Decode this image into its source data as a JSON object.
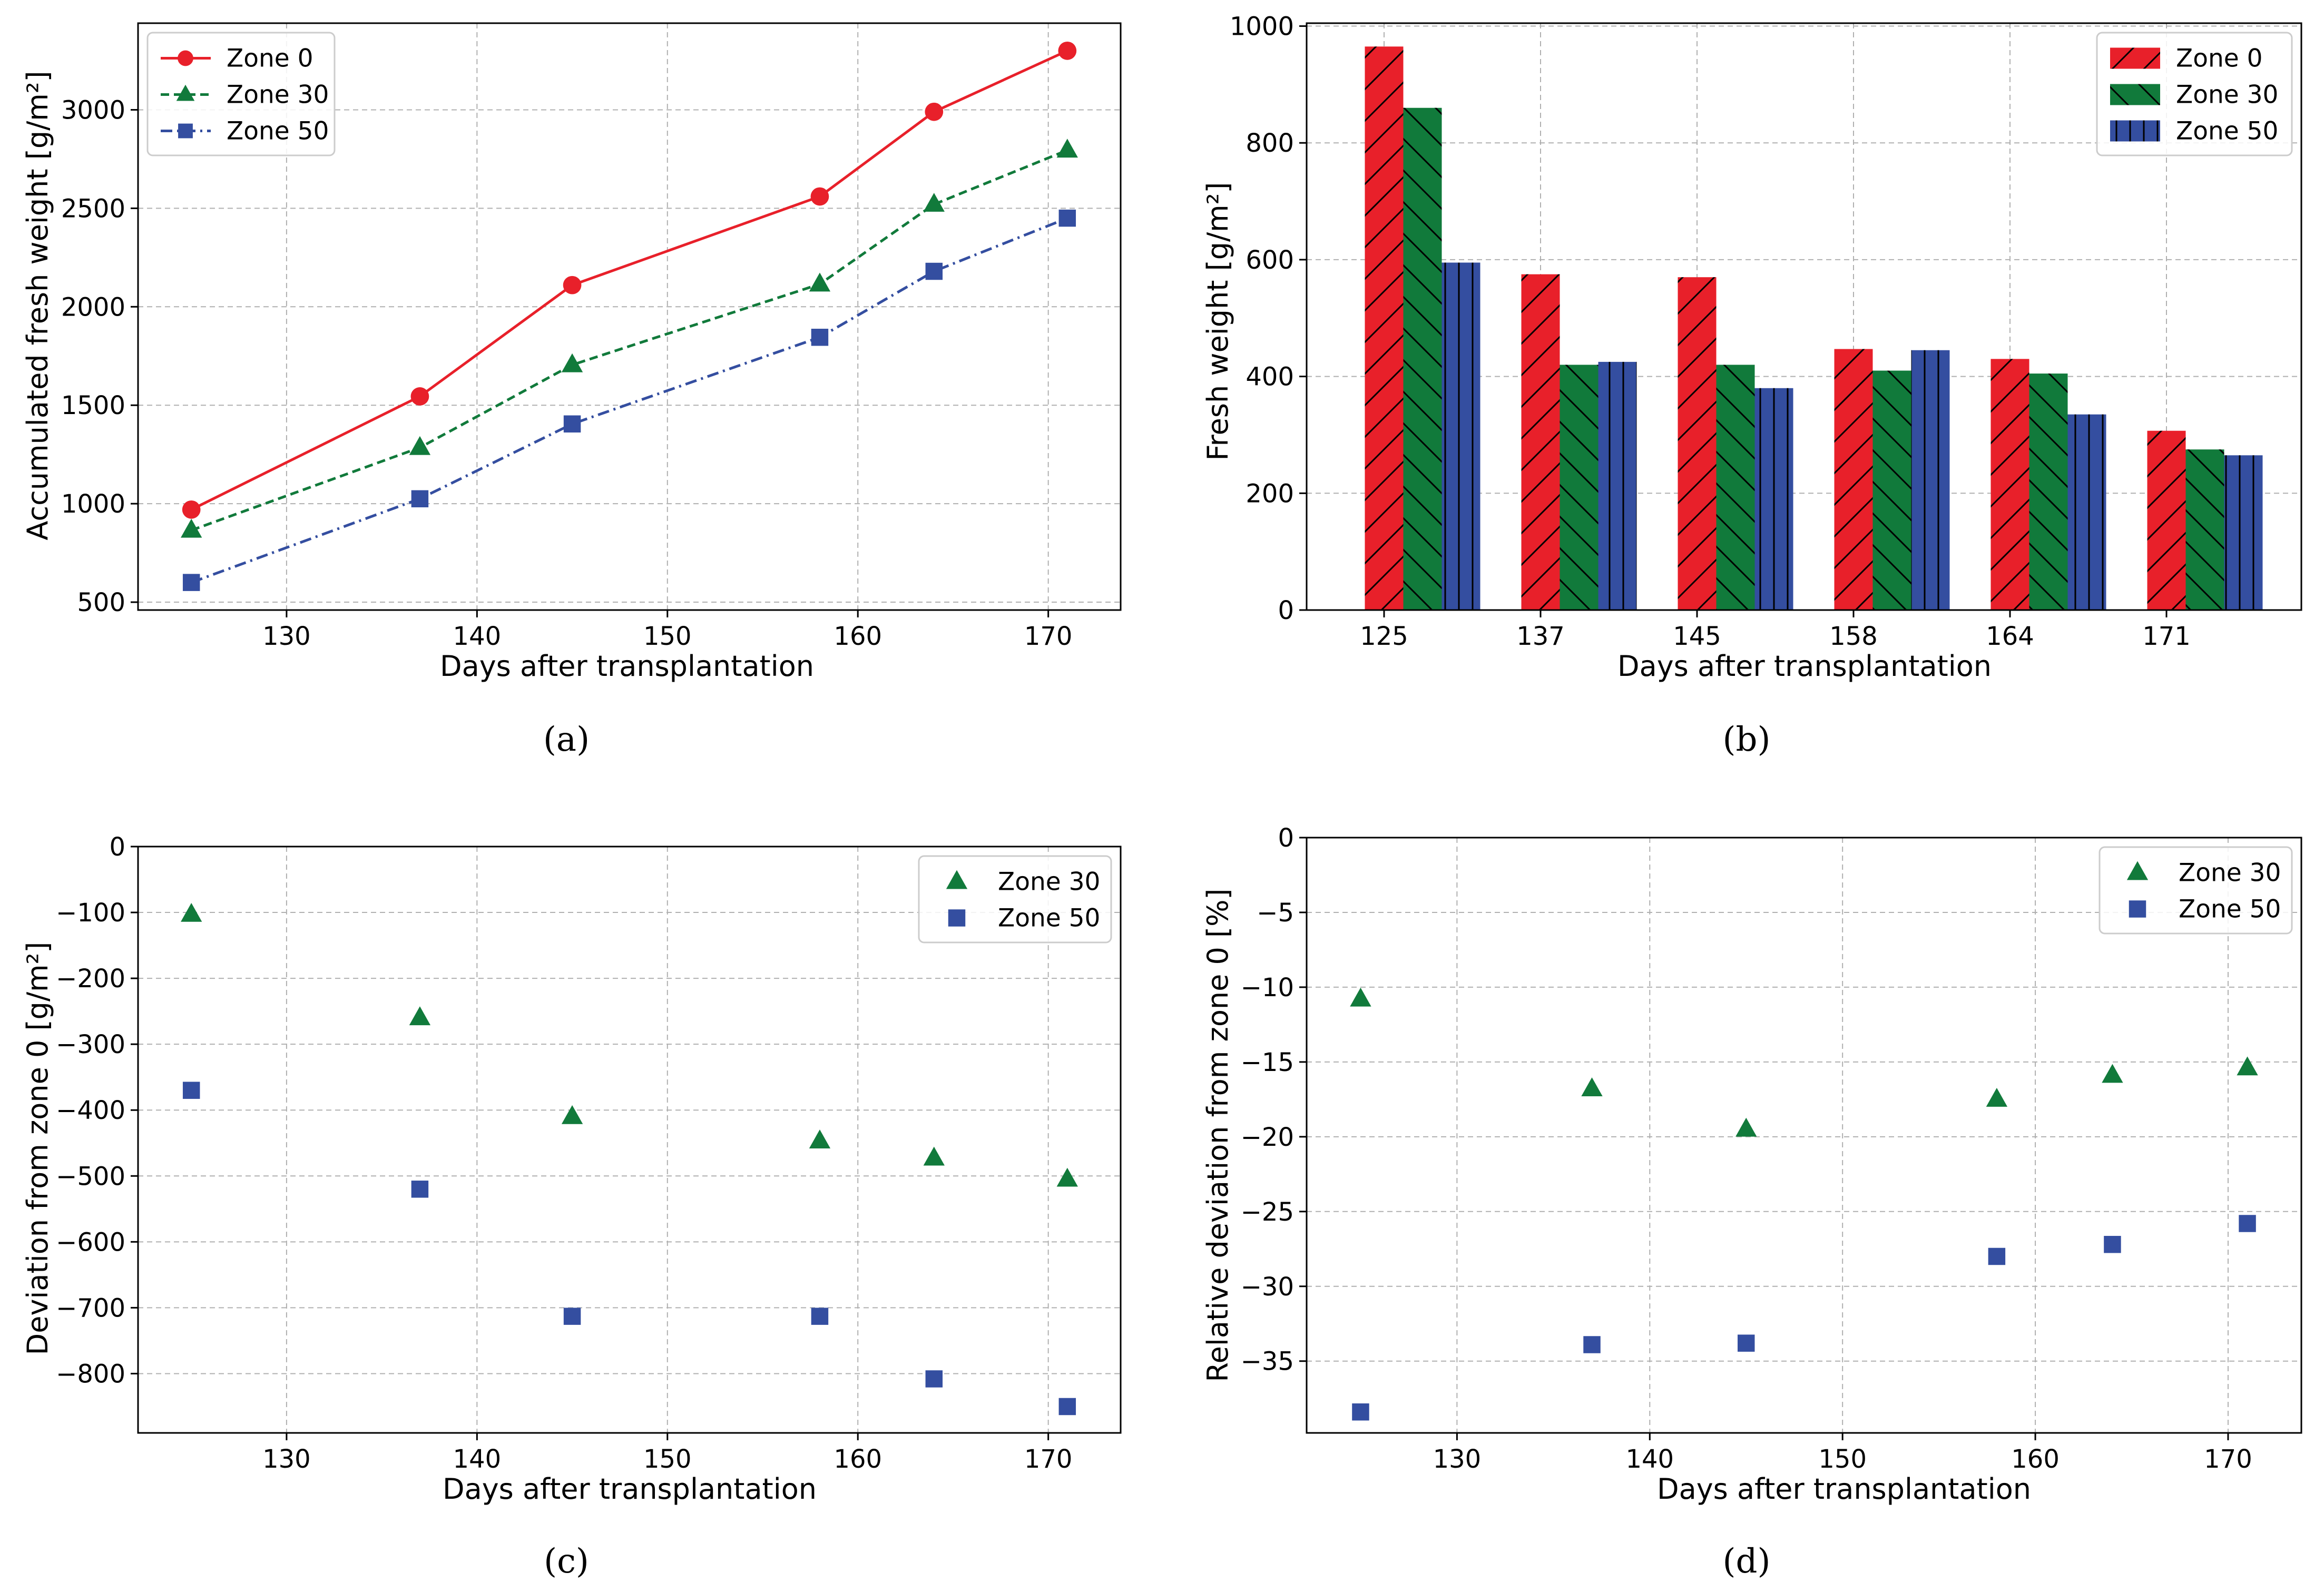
{
  "chart_data": [
    {
      "id": "a",
      "type": "line",
      "caption": "(a)",
      "title": "",
      "xlabel": "Days after transplantation",
      "ylabel": "Accumulated fresh weight [g/m²]",
      "x": [
        125,
        137,
        145,
        158,
        164,
        171
      ],
      "xlim": [
        122.2,
        173.8
      ],
      "ylim": [
        460,
        3440
      ],
      "xticks": [
        130,
        140,
        150,
        160,
        170
      ],
      "yticks": [
        500,
        1000,
        1500,
        2000,
        2500,
        3000
      ],
      "grid": true,
      "legend_position": "top-left",
      "series": [
        {
          "name": "Zone 0",
          "color": "#e8202a",
          "marker": "circle",
          "dash": "solid",
          "values": [
            970,
            1545,
            2110,
            2560,
            2990,
            3300
          ]
        },
        {
          "name": "Zone 30",
          "color": "#117a3b",
          "marker": "triangle",
          "dash": "dashed",
          "values": [
            865,
            1285,
            1705,
            2115,
            2520,
            2795
          ]
        },
        {
          "name": "Zone 50",
          "color": "#344ea0",
          "marker": "square",
          "dash": "dashdot",
          "values": [
            600,
            1025,
            1405,
            1845,
            2180,
            2450
          ]
        }
      ]
    },
    {
      "id": "b",
      "type": "bar",
      "caption": "(b)",
      "title": "",
      "xlabel": "Days after transplantation",
      "ylabel": "Fresh weight [g/m²]",
      "categories": [
        "125",
        "137",
        "145",
        "158",
        "164",
        "171"
      ],
      "ylim": [
        0,
        1005
      ],
      "yticks": [
        0,
        200,
        400,
        600,
        800,
        1000
      ],
      "grid": true,
      "legend_position": "top-right",
      "series": [
        {
          "name": "Zone 0",
          "color": "#e8202a",
          "hatch": "forward",
          "values": [
            965,
            575,
            570,
            447,
            430,
            307
          ]
        },
        {
          "name": "Zone 30",
          "color": "#117a3b",
          "hatch": "back",
          "values": [
            860,
            420,
            420,
            410,
            405,
            275
          ]
        },
        {
          "name": "Zone 50",
          "color": "#344ea0",
          "hatch": "vertical",
          "values": [
            595,
            425,
            380,
            445,
            335,
            265
          ]
        }
      ]
    },
    {
      "id": "c",
      "type": "scatter",
      "caption": "(c)",
      "title": "",
      "xlabel": "Days after transplantation",
      "ylabel": "Deviation from zone 0 [g/m²]",
      "x": [
        125,
        137,
        145,
        158,
        164,
        171
      ],
      "xlim": [
        122.2,
        173.8
      ],
      "ylim": [
        -890,
        0
      ],
      "xticks": [
        130,
        140,
        150,
        160,
        170
      ],
      "yticks": [
        0,
        -100,
        -200,
        -300,
        -400,
        -500,
        -600,
        -700,
        -800
      ],
      "ytick_labels": [
        "0",
        "−100",
        "−200",
        "−300",
        "−400",
        "−500",
        "−600",
        "−700",
        "−800"
      ],
      "grid": true,
      "legend_position": "top-right",
      "series": [
        {
          "name": "Zone 30",
          "color": "#117a3b",
          "marker": "triangle",
          "values": [
            -103,
            -260,
            -410,
            -447,
            -473,
            -505
          ]
        },
        {
          "name": "Zone 50",
          "color": "#344ea0",
          "marker": "square",
          "values": [
            -370,
            -520,
            -713,
            -713,
            -808,
            -850
          ]
        }
      ]
    },
    {
      "id": "d",
      "type": "scatter",
      "caption": "(d)",
      "title": "",
      "xlabel": "Days after transplantation",
      "ylabel": "Relative deviation from zone 0 [%]",
      "x": [
        125,
        137,
        145,
        158,
        164,
        171
      ],
      "xlim": [
        122.2,
        173.8
      ],
      "ylim": [
        -39.8,
        0
      ],
      "xticks": [
        130,
        140,
        150,
        160,
        170
      ],
      "yticks": [
        0,
        -5,
        -10,
        -15,
        -20,
        -25,
        -30,
        -35
      ],
      "ytick_labels": [
        "0",
        "−5",
        "−10",
        "−15",
        "−20",
        "−25",
        "−30",
        "−35"
      ],
      "grid": true,
      "legend_position": "top-right",
      "series": [
        {
          "name": "Zone 30",
          "color": "#117a3b",
          "marker": "triangle",
          "values": [
            -10.8,
            -16.8,
            -19.5,
            -17.5,
            -15.9,
            -15.4
          ]
        },
        {
          "name": "Zone 50",
          "color": "#344ea0",
          "marker": "square",
          "values": [
            -38.4,
            -33.9,
            -33.8,
            -28.0,
            -27.2,
            -25.8
          ]
        }
      ]
    }
  ]
}
